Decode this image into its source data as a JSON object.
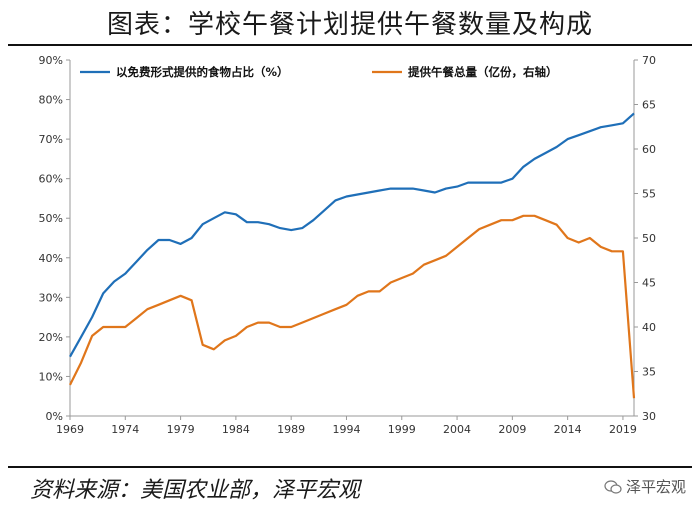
{
  "header": {
    "title": "图表：学校午餐计划提供午餐数量及构成"
  },
  "footer": {
    "source": "资料来源：美国农业部，泽平宏观",
    "watermark": "泽平宏观"
  },
  "chart_data": {
    "type": "line",
    "title": "图表：学校午餐计划提供午餐数量及构成",
    "x_ticks": [
      "1969",
      "1974",
      "1979",
      "1984",
      "1989",
      "1994",
      "1999",
      "2004",
      "2009",
      "2014",
      "2019"
    ],
    "xlim": [
      1969,
      2020
    ],
    "y_left": {
      "ticks": [
        "0%",
        "10%",
        "20%",
        "30%",
        "40%",
        "50%",
        "60%",
        "70%",
        "80%",
        "90%"
      ],
      "lim": [
        0,
        90
      ]
    },
    "y_right": {
      "ticks": [
        "30",
        "35",
        "40",
        "45",
        "50",
        "55",
        "60",
        "65",
        "70"
      ],
      "lim": [
        30,
        70
      ]
    },
    "grid": false,
    "legend": "top",
    "series": [
      {
        "name": "以免费形式提供的食物占比（%）",
        "axis": "left",
        "color": "#1f6fb8",
        "x": [
          1969,
          1970,
          1971,
          1972,
          1973,
          1974,
          1975,
          1976,
          1977,
          1978,
          1979,
          1980,
          1981,
          1982,
          1983,
          1984,
          1985,
          1986,
          1987,
          1988,
          1989,
          1990,
          1991,
          1992,
          1993,
          1994,
          1995,
          1996,
          1997,
          1998,
          1999,
          2000,
          2001,
          2002,
          2003,
          2004,
          2005,
          2006,
          2007,
          2008,
          2009,
          2010,
          2011,
          2012,
          2013,
          2014,
          2015,
          2016,
          2017,
          2018,
          2019,
          2020
        ],
        "values": [
          15,
          20,
          25,
          31,
          34,
          36,
          39,
          42,
          44.5,
          44.5,
          43.5,
          45,
          48.5,
          50,
          51.5,
          51,
          49,
          49,
          48.5,
          47.5,
          47,
          47.5,
          49.5,
          52,
          54.5,
          55.5,
          56,
          56.5,
          57,
          57.5,
          57.5,
          57.5,
          57,
          56.5,
          57.5,
          58,
          59,
          59,
          59,
          59,
          60,
          63,
          65,
          66.5,
          68,
          70,
          71,
          72,
          73,
          73.5,
          74,
          76.5
        ]
      },
      {
        "name": "提供午餐总量（亿份，右轴）",
        "axis": "right",
        "color": "#e0761b",
        "x": [
          1969,
          1970,
          1971,
          1972,
          1973,
          1974,
          1975,
          1976,
          1977,
          1978,
          1979,
          1980,
          1981,
          1982,
          1983,
          1984,
          1985,
          1986,
          1987,
          1988,
          1989,
          1990,
          1991,
          1992,
          1993,
          1994,
          1995,
          1996,
          1997,
          1998,
          1999,
          2000,
          2001,
          2002,
          2003,
          2004,
          2005,
          2006,
          2007,
          2008,
          2009,
          2010,
          2011,
          2012,
          2013,
          2014,
          2015,
          2016,
          2017,
          2018,
          2019,
          2020
        ],
        "values": [
          33.5,
          36,
          39,
          40,
          40,
          40,
          41,
          42,
          42.5,
          43,
          43.5,
          43,
          38,
          37.5,
          38.5,
          39,
          40,
          40.5,
          40.5,
          40,
          40,
          40.5,
          41,
          41.5,
          42,
          42.5,
          43.5,
          44,
          44,
          45,
          45.5,
          46,
          47,
          47.5,
          48,
          49,
          50,
          51,
          51.5,
          52,
          52,
          52.5,
          52.5,
          52,
          51.5,
          50,
          49.5,
          50,
          49,
          48.5,
          48.5,
          32
        ]
      }
    ]
  }
}
